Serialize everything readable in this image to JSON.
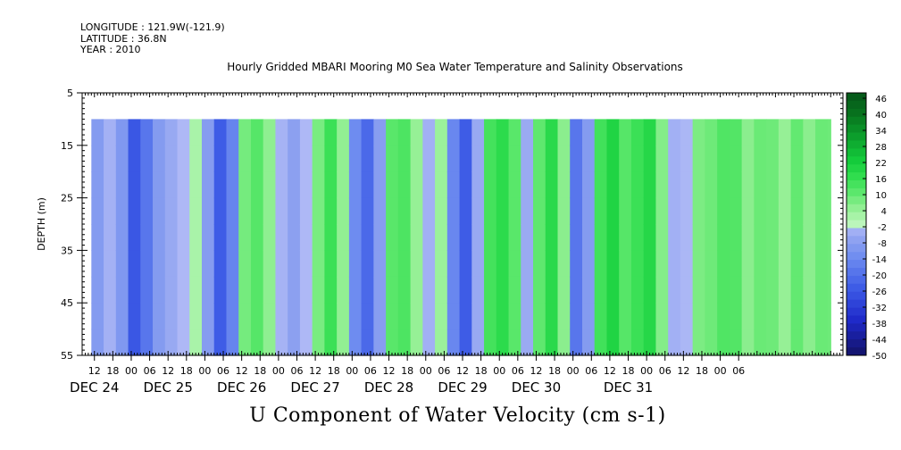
{
  "header": {
    "line1": "LONGITUDE : 121.9W(-121.9)",
    "line2": "LATITUDE : 36.8N",
    "line3": "YEAR : 2010"
  },
  "chart_data": {
    "type": "heatmap",
    "title": "Hourly Gridded MBARI Mooring M0 Sea Water Temperature and Salinity Observations",
    "xlabel": "U Component of Water Velocity (cm s-1)",
    "ylabel": "DEPTH (m)",
    "ylim": [
      5,
      55
    ],
    "y_inverted": true,
    "y_ticks": [
      5,
      15,
      25,
      35,
      45,
      55
    ],
    "x_range_hours": [
      -16,
      232
    ],
    "x_hour_ticks": [
      "12",
      "18",
      "00",
      "06",
      "12",
      "18",
      "00",
      "06",
      "12",
      "18",
      "00",
      "06",
      "12",
      "18",
      "00",
      "06",
      "12",
      "18",
      "00",
      "06",
      "12",
      "18",
      "00",
      "06",
      "12",
      "18",
      "00",
      "06",
      "12",
      "18",
      "00",
      "06",
      "12",
      "18",
      "00",
      "06"
    ],
    "date_labels": [
      "DEC 24",
      "DEC 25",
      "DEC 26",
      "DEC 27",
      "DEC 28",
      "DEC 29",
      "DEC 30",
      "DEC 31"
    ],
    "data_depth_range": [
      10,
      55
    ],
    "data_time_range_hours": [
      -13,
      228
    ],
    "columns": [
      {
        "t": -13,
        "u": -8
      },
      {
        "t": -9,
        "u": -4
      },
      {
        "t": -5,
        "u": -12
      },
      {
        "t": -1,
        "u": -26
      },
      {
        "t": 3,
        "u": -20
      },
      {
        "t": 7,
        "u": -8
      },
      {
        "t": 11,
        "u": -6
      },
      {
        "t": 15,
        "u": -4
      },
      {
        "t": 19,
        "u": 2
      },
      {
        "t": 23,
        "u": -10
      },
      {
        "t": 27,
        "u": -24
      },
      {
        "t": 31,
        "u": -16
      },
      {
        "t": 35,
        "u": 6
      },
      {
        "t": 39,
        "u": 12
      },
      {
        "t": 43,
        "u": 4
      },
      {
        "t": 47,
        "u": -2
      },
      {
        "t": 51,
        "u": -8
      },
      {
        "t": 55,
        "u": -4
      },
      {
        "t": 59,
        "u": 8
      },
      {
        "t": 63,
        "u": 14
      },
      {
        "t": 67,
        "u": 6
      },
      {
        "t": 71,
        "u": -14
      },
      {
        "t": 75,
        "u": -24
      },
      {
        "t": 79,
        "u": -8
      },
      {
        "t": 83,
        "u": 10
      },
      {
        "t": 87,
        "u": 14
      },
      {
        "t": 91,
        "u": 4
      },
      {
        "t": 95,
        "u": -6
      },
      {
        "t": 99,
        "u": 4
      },
      {
        "t": 103,
        "u": -16
      },
      {
        "t": 107,
        "u": -24
      },
      {
        "t": 111,
        "u": -6
      },
      {
        "t": 115,
        "u": 12
      },
      {
        "t": 119,
        "u": 18
      },
      {
        "t": 123,
        "u": 10
      },
      {
        "t": 127,
        "u": -4
      },
      {
        "t": 131,
        "u": 10
      },
      {
        "t": 135,
        "u": 16
      },
      {
        "t": 139,
        "u": 6
      },
      {
        "t": 143,
        "u": -20
      },
      {
        "t": 147,
        "u": -8
      },
      {
        "t": 151,
        "u": 14
      },
      {
        "t": 155,
        "u": 18
      },
      {
        "t": 159,
        "u": 12
      },
      {
        "t": 163,
        "u": 14
      },
      {
        "t": 167,
        "u": 20
      },
      {
        "t": 171,
        "u": 6
      },
      {
        "t": 175,
        "u": -6
      },
      {
        "t": 179,
        "u": -2
      },
      {
        "t": 183,
        "u": 6
      },
      {
        "t": 187,
        "u": 10
      },
      {
        "t": 191,
        "u": 12
      },
      {
        "t": 195,
        "u": 10
      },
      {
        "t": 199,
        "u": 6
      },
      {
        "t": 203,
        "u": 8
      },
      {
        "t": 207,
        "u": 10
      },
      {
        "t": 211,
        "u": 4
      },
      {
        "t": 215,
        "u": 8
      },
      {
        "t": 219,
        "u": 6
      },
      {
        "t": 223,
        "u": 8
      },
      {
        "t": 227,
        "u": 10
      }
    ],
    "colorbar_labels": [
      "46",
      "40",
      "34",
      "28",
      "22",
      "16",
      "10",
      "4",
      "-2",
      "-8",
      "-14",
      "-20",
      "-26",
      "-32",
      "-38",
      "-44",
      "-50"
    ],
    "colorbar_levels": [
      -50,
      48,
      3
    ],
    "legend_position": "right"
  }
}
